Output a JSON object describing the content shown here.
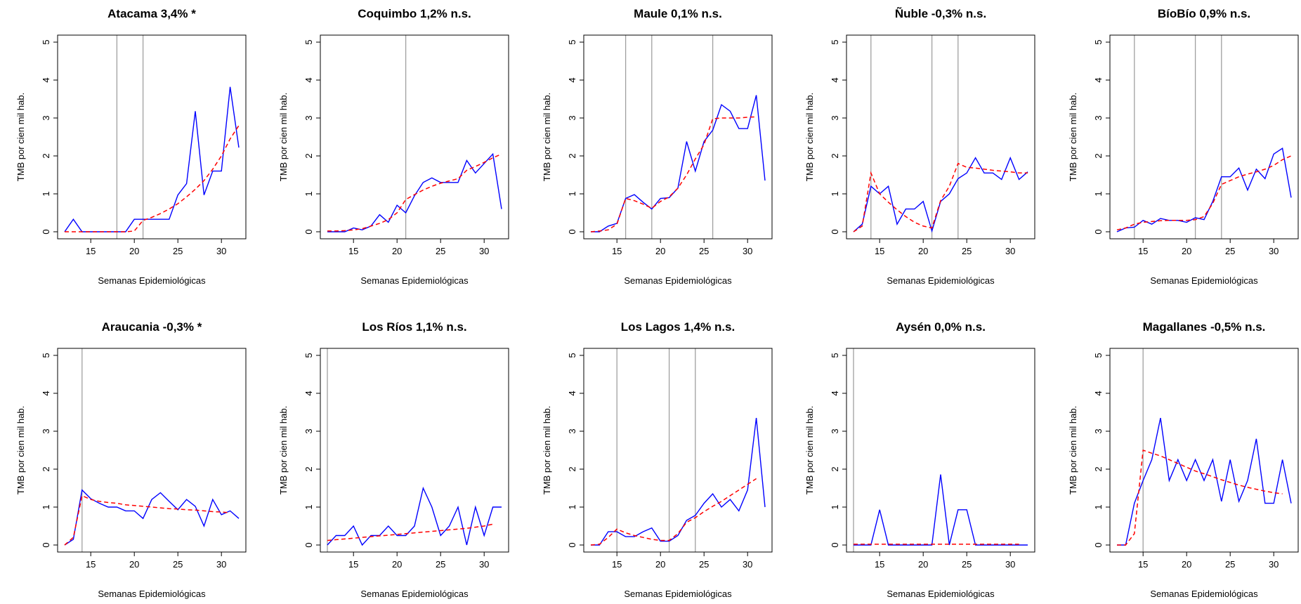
{
  "chart_data": [
    {
      "type": "line",
      "title": "Atacama 3,4% *",
      "xlabel": "Semanas Epidemiológicas",
      "ylabel": "TMB por cien mil hab.",
      "xlim": [
        12,
        32
      ],
      "ylim": [
        0,
        5
      ],
      "xticks": [
        15,
        20,
        25,
        30
      ],
      "yticks": [
        0,
        1,
        2,
        3,
        4,
        5
      ],
      "vlines": [
        18,
        21
      ],
      "x": [
        12,
        13,
        14,
        15,
        16,
        17,
        18,
        19,
        20,
        21,
        22,
        23,
        24,
        25,
        26,
        27,
        28,
        29,
        30,
        31,
        32
      ],
      "series": [
        {
          "color": "#0000ff",
          "values": [
            0,
            0.33,
            0,
            0,
            0,
            0,
            0,
            0,
            0.33,
            0.33,
            0.33,
            0.33,
            0.33,
            0.97,
            1.27,
            3.18,
            0.97,
            1.6,
            1.6,
            3.82,
            2.22
          ]
        },
        {
          "color": "#ff0000",
          "values": [
            0,
            0,
            0,
            0,
            0,
            0,
            0,
            0,
            0.02,
            0.3,
            0.38,
            0.48,
            0.6,
            0.74,
            0.92,
            1.12,
            1.35,
            1.65,
            2.0,
            2.45,
            2.8
          ]
        }
      ]
    },
    {
      "type": "line",
      "title": "Coquimbo 1,2% n.s.",
      "xlabel": "Semanas Epidemiológicas",
      "ylabel": "TMB por cien mil hab.",
      "xlim": [
        12,
        32
      ],
      "ylim": [
        0,
        5
      ],
      "xticks": [
        15,
        20,
        25,
        30
      ],
      "yticks": [
        0,
        1,
        2,
        3,
        4,
        5
      ],
      "vlines": [
        21
      ],
      "x": [
        12,
        13,
        14,
        15,
        16,
        17,
        18,
        19,
        20,
        21,
        22,
        23,
        24,
        25,
        26,
        27,
        28,
        29,
        30,
        31,
        32
      ],
      "series": [
        {
          "color": "#0000ff",
          "values": [
            0,
            0,
            0,
            0.1,
            0.05,
            0.15,
            0.45,
            0.25,
            0.7,
            0.5,
            0.95,
            1.3,
            1.42,
            1.3,
            1.3,
            1.3,
            1.88,
            1.55,
            1.8,
            2.05,
            0.6
          ]
        },
        {
          "color": "#ff0000",
          "values": [
            0.02,
            0.02,
            0.03,
            0.05,
            0.08,
            0.15,
            0.22,
            0.32,
            0.5,
            0.85,
            0.98,
            1.1,
            1.2,
            1.28,
            1.34,
            1.4,
            1.62,
            1.72,
            1.83,
            1.95,
            2.05
          ]
        }
      ]
    },
    {
      "type": "line",
      "title": "Maule 0,1% n.s.",
      "xlabel": "Semanas Epidemiológicas",
      "ylabel": "TMB por cien mil hab.",
      "xlim": [
        12,
        32
      ],
      "ylim": [
        0,
        5
      ],
      "xticks": [
        15,
        20,
        25,
        30
      ],
      "yticks": [
        0,
        1,
        2,
        3,
        4,
        5
      ],
      "vlines": [
        16,
        19,
        26
      ],
      "x": [
        12,
        13,
        14,
        15,
        16,
        17,
        18,
        19,
        20,
        21,
        22,
        23,
        24,
        25,
        26,
        27,
        28,
        29,
        30,
        31,
        32
      ],
      "series": [
        {
          "color": "#0000ff",
          "values": [
            0,
            0,
            0.15,
            0.22,
            0.88,
            0.98,
            0.78,
            0.6,
            0.88,
            0.9,
            1.15,
            2.38,
            1.6,
            2.38,
            2.68,
            3.35,
            3.18,
            2.72,
            2.72,
            3.6,
            1.35
          ]
        },
        {
          "color": "#ff0000",
          "values": [
            0,
            0.02,
            0.05,
            0.2,
            0.88,
            0.82,
            0.73,
            0.62,
            0.8,
            0.92,
            1.15,
            1.5,
            1.92,
            2.3,
            2.98,
            3.0,
            3.0,
            3.0,
            3.02,
            3.03,
            null
          ]
        }
      ]
    },
    {
      "type": "line",
      "title": "Ñuble -0,3% n.s.",
      "xlabel": "Semanas Epidemiológicas",
      "ylabel": "TMB por cien mil hab.",
      "xlim": [
        12,
        32
      ],
      "ylim": [
        0,
        5
      ],
      "xticks": [
        15,
        20,
        25,
        30
      ],
      "yticks": [
        0,
        1,
        2,
        3,
        4,
        5
      ],
      "vlines": [
        14,
        21,
        24
      ],
      "x": [
        12,
        13,
        14,
        15,
        16,
        17,
        18,
        19,
        20,
        21,
        22,
        23,
        24,
        25,
        26,
        27,
        28,
        29,
        30,
        31,
        32
      ],
      "series": [
        {
          "color": "#0000ff",
          "values": [
            0,
            0.2,
            1.2,
            1.0,
            1.2,
            0.2,
            0.6,
            0.6,
            0.8,
            0.02,
            0.8,
            1.0,
            1.4,
            1.55,
            1.95,
            1.55,
            1.55,
            1.38,
            1.95,
            1.38,
            1.58
          ]
        },
        {
          "color": "#ff0000",
          "values": [
            0,
            0.15,
            1.55,
            1.0,
            0.78,
            0.58,
            0.4,
            0.25,
            0.15,
            0.1,
            0.82,
            1.2,
            1.8,
            1.7,
            1.68,
            1.65,
            1.62,
            1.6,
            1.58,
            1.55,
            1.55
          ]
        }
      ]
    },
    {
      "type": "line",
      "title": "BíoBío 0,9% n.s.",
      "xlabel": "Semanas Epidemiológicas",
      "ylabel": "TMB por cien mil hab.",
      "xlim": [
        12,
        32
      ],
      "ylim": [
        0,
        5
      ],
      "xticks": [
        15,
        20,
        25,
        30
      ],
      "yticks": [
        0,
        1,
        2,
        3,
        4,
        5
      ],
      "vlines": [
        14,
        21,
        24
      ],
      "x": [
        12,
        13,
        14,
        15,
        16,
        17,
        18,
        19,
        20,
        21,
        22,
        23,
        24,
        25,
        26,
        27,
        28,
        29,
        30,
        31,
        32
      ],
      "series": [
        {
          "color": "#0000ff",
          "values": [
            0,
            0.1,
            0.12,
            0.3,
            0.2,
            0.35,
            0.3,
            0.3,
            0.25,
            0.37,
            0.32,
            0.8,
            1.45,
            1.45,
            1.68,
            1.1,
            1.65,
            1.4,
            2.05,
            2.2,
            0.9
          ]
        },
        {
          "color": "#ff0000",
          "values": [
            0.05,
            0.1,
            0.2,
            0.25,
            0.27,
            0.29,
            0.3,
            0.3,
            0.3,
            0.32,
            0.4,
            0.75,
            1.25,
            1.35,
            1.45,
            1.52,
            1.58,
            1.65,
            1.75,
            1.9,
            2.0
          ]
        }
      ]
    },
    {
      "type": "line",
      "title": "Araucania -0,3% *",
      "xlabel": "Semanas Epidemiológicas",
      "ylabel": "TMB por cien mil hab.",
      "xlim": [
        12,
        32
      ],
      "ylim": [
        0,
        5
      ],
      "xticks": [
        15,
        20,
        25,
        30
      ],
      "yticks": [
        0,
        1,
        2,
        3,
        4,
        5
      ],
      "vlines": [
        14
      ],
      "x": [
        12,
        13,
        14,
        15,
        16,
        17,
        18,
        19,
        20,
        21,
        22,
        23,
        24,
        25,
        26,
        27,
        28,
        29,
        30,
        31,
        32
      ],
      "series": [
        {
          "color": "#0000ff",
          "values": [
            0,
            0.15,
            1.45,
            1.22,
            1.1,
            1.0,
            1.0,
            0.9,
            0.9,
            0.7,
            1.2,
            1.38,
            1.15,
            0.93,
            1.2,
            1.02,
            0.5,
            1.2,
            0.8,
            0.9,
            0.7
          ]
        },
        {
          "color": "#ff0000",
          "values": [
            0,
            0.2,
            1.3,
            1.2,
            1.15,
            1.12,
            1.1,
            1.06,
            1.04,
            1.02,
            1.0,
            0.98,
            0.96,
            0.95,
            0.93,
            0.92,
            0.9,
            0.88,
            0.87,
            0.85,
            null
          ]
        }
      ]
    },
    {
      "type": "line",
      "title": "Los Ríos 1,1% n.s.",
      "xlabel": "Semanas Epidemiológicas",
      "ylabel": "TMB por cien mil hab.",
      "xlim": [
        12,
        32
      ],
      "ylim": [
        0,
        5
      ],
      "xticks": [
        15,
        20,
        25,
        30
      ],
      "yticks": [
        0,
        1,
        2,
        3,
        4,
        5
      ],
      "vlines": [
        12
      ],
      "x": [
        12,
        13,
        14,
        15,
        16,
        17,
        18,
        19,
        20,
        21,
        22,
        23,
        24,
        25,
        26,
        27,
        28,
        29,
        30,
        31,
        32
      ],
      "series": [
        {
          "color": "#0000ff",
          "values": [
            0,
            0.25,
            0.25,
            0.5,
            0,
            0.25,
            0.25,
            0.5,
            0.25,
            0.25,
            0.5,
            1.5,
            1.0,
            0.25,
            0.5,
            1.0,
            0,
            1.0,
            0.25,
            1.0,
            1.0
          ]
        },
        {
          "color": "#ff0000",
          "values": [
            0.12,
            0.14,
            0.16,
            0.18,
            0.2,
            0.22,
            0.24,
            0.26,
            0.28,
            0.3,
            0.32,
            0.34,
            0.36,
            0.38,
            0.4,
            0.42,
            0.44,
            0.47,
            0.5,
            0.55,
            null
          ]
        }
      ]
    },
    {
      "type": "line",
      "title": "Los Lagos 1,4% n.s.",
      "xlabel": "Semanas Epidemiológicas",
      "ylabel": "TMB por cien mil hab.",
      "xlim": [
        12,
        32
      ],
      "ylim": [
        0,
        5
      ],
      "xticks": [
        15,
        20,
        25,
        30
      ],
      "yticks": [
        0,
        1,
        2,
        3,
        4,
        5
      ],
      "vlines": [
        15,
        21,
        24
      ],
      "x": [
        12,
        13,
        14,
        15,
        16,
        17,
        18,
        19,
        20,
        21,
        22,
        23,
        24,
        25,
        26,
        27,
        28,
        29,
        30,
        31,
        32
      ],
      "series": [
        {
          "color": "#0000ff",
          "values": [
            0,
            0,
            0.35,
            0.35,
            0.22,
            0.22,
            0.35,
            0.45,
            0.1,
            0.1,
            0.25,
            0.65,
            0.78,
            1.1,
            1.35,
            1.0,
            1.2,
            0.9,
            1.45,
            3.35,
            1.0
          ]
        },
        {
          "color": "#ff0000",
          "values": [
            0,
            0.02,
            0.2,
            0.42,
            0.32,
            0.25,
            0.2,
            0.15,
            0.12,
            0.12,
            0.3,
            0.6,
            0.72,
            0.88,
            1.02,
            1.15,
            1.3,
            1.45,
            1.6,
            1.75,
            null
          ]
        }
      ]
    },
    {
      "type": "line",
      "title": "Aysén 0,0% n.s.",
      "xlabel": "Semanas Epidemiológicas",
      "ylabel": "TMB por cien mil hab.",
      "xlim": [
        12,
        32
      ],
      "ylim": [
        0,
        5
      ],
      "xticks": [
        15,
        20,
        25,
        30
      ],
      "yticks": [
        0,
        1,
        2,
        3,
        4,
        5
      ],
      "vlines": [
        12
      ],
      "x": [
        12,
        13,
        14,
        15,
        16,
        17,
        18,
        19,
        20,
        21,
        22,
        23,
        24,
        25,
        26,
        27,
        28,
        29,
        30,
        31,
        32
      ],
      "series": [
        {
          "color": "#0000ff",
          "values": [
            0,
            0,
            0,
            0.93,
            0,
            0,
            0,
            0,
            0,
            0,
            1.86,
            0,
            0.93,
            0.93,
            0,
            0,
            0,
            0,
            0,
            0,
            0
          ]
        },
        {
          "color": "#ff0000",
          "values": [
            0.02,
            0.02,
            0.02,
            0.02,
            0.02,
            0.02,
            0.02,
            0.02,
            0.02,
            0.02,
            0.02,
            0.02,
            0.02,
            0.02,
            0.02,
            0.02,
            0.02,
            0.02,
            0.02,
            0.02,
            null
          ]
        }
      ]
    },
    {
      "type": "line",
      "title": "Magallanes -0,5% n.s.",
      "xlabel": "Semanas Epidemiológicas",
      "ylabel": "TMB por cien mil hab.",
      "xlim": [
        12,
        32
      ],
      "ylim": [
        0,
        5
      ],
      "xticks": [
        15,
        20,
        25,
        30
      ],
      "yticks": [
        0,
        1,
        2,
        3,
        4,
        5
      ],
      "vlines": [
        15
      ],
      "x": [
        12,
        13,
        14,
        15,
        16,
        17,
        18,
        19,
        20,
        21,
        22,
        23,
        24,
        25,
        26,
        27,
        28,
        29,
        30,
        31,
        32
      ],
      "series": [
        {
          "color": "#0000ff",
          "values": [
            0,
            0,
            1.1,
            1.7,
            2.25,
            3.35,
            1.7,
            2.25,
            1.7,
            2.25,
            1.7,
            2.25,
            1.15,
            2.25,
            1.15,
            1.7,
            2.8,
            1.1,
            1.1,
            2.25,
            1.1
          ]
        },
        {
          "color": "#ff0000",
          "values": [
            0,
            0,
            0.3,
            2.5,
            2.42,
            2.35,
            2.25,
            2.15,
            2.05,
            1.95,
            1.88,
            1.8,
            1.72,
            1.65,
            1.58,
            1.52,
            1.47,
            1.42,
            1.38,
            1.35,
            null
          ]
        }
      ]
    }
  ]
}
